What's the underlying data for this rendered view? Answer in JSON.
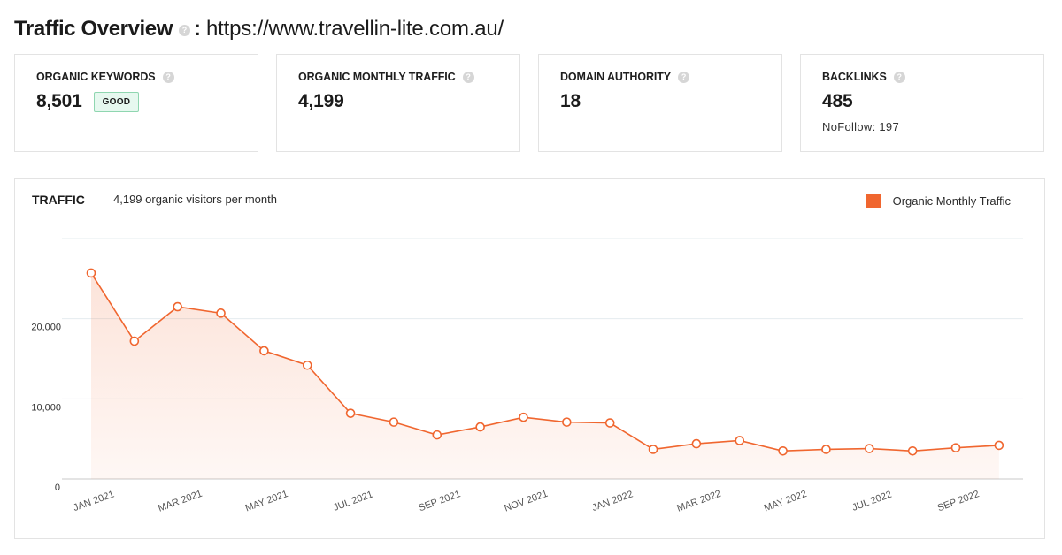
{
  "header": {
    "title": "Traffic Overview",
    "separator": ":",
    "url": "https://www.travellin-lite.com.au/",
    "help_icon": "question-icon"
  },
  "cards": [
    {
      "label": "ORGANIC KEYWORDS",
      "value": "8,501",
      "badge": "GOOD",
      "sub": ""
    },
    {
      "label": "ORGANIC MONTHLY TRAFFIC",
      "value": "4,199",
      "badge": "",
      "sub": ""
    },
    {
      "label": "DOMAIN AUTHORITY",
      "value": "18",
      "badge": "",
      "sub": ""
    },
    {
      "label": "BACKLINKS",
      "value": "485",
      "badge": "",
      "sub": "NoFollow: 197"
    }
  ],
  "colors": {
    "accent": "#f0662f",
    "badge_bg": "#e6f8ef",
    "badge_border": "#8fd6b0",
    "help_icon": "#d6d6d6"
  },
  "traffic": {
    "title": "TRAFFIC",
    "subtitle": "4,199 organic visitors per month"
  },
  "chart_data": {
    "type": "area",
    "title": "",
    "xlabel": "",
    "ylabel": "",
    "ylim": [
      0,
      30000
    ],
    "yticks": [
      0,
      10000,
      20000
    ],
    "ytick_labels": [
      "0",
      "10,000",
      "20,000"
    ],
    "grid": true,
    "legend": {
      "position": "top-right",
      "entries": [
        "Organic Monthly Traffic"
      ]
    },
    "x": [
      "JAN 2021",
      "FEB 2021",
      "MAR 2021",
      "APR 2021",
      "MAY 2021",
      "JUN 2021",
      "JUL 2021",
      "AUG 2021",
      "SEP 2021",
      "OCT 2021",
      "NOV 2021",
      "DEC 2021",
      "JAN 2022",
      "FEB 2022",
      "MAR 2022",
      "APR 2022",
      "MAY 2022",
      "JUN 2022",
      "JUL 2022",
      "AUG 2022",
      "SEP 2022",
      "OCT 2022"
    ],
    "xtick_labels": [
      "JAN 2021",
      "MAR 2021",
      "MAY 2021",
      "JUL 2021",
      "SEP 2021",
      "NOV 2021",
      "JAN 2022",
      "MAR 2022",
      "MAY 2022",
      "JUL 2022",
      "SEP 2022"
    ],
    "series": [
      {
        "name": "Organic Monthly Traffic",
        "color": "#f0662f",
        "values": [
          25700,
          17200,
          21500,
          20700,
          16000,
          14200,
          8200,
          7100,
          5500,
          6500,
          7700,
          7100,
          7000,
          3700,
          4400,
          4800,
          3500,
          3700,
          3800,
          3500,
          3900,
          4199
        ]
      }
    ]
  }
}
